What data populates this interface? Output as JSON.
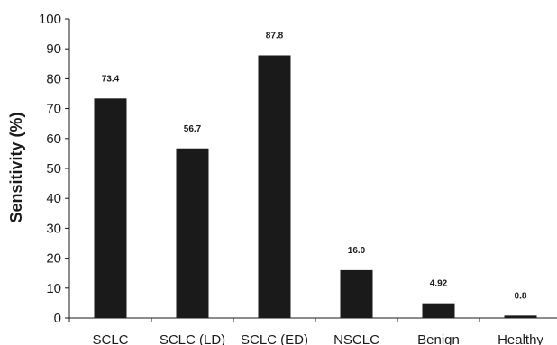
{
  "chart_data": {
    "type": "bar",
    "categories": [
      "SCLC",
      "SCLC (LD)",
      "SCLC (ED)",
      "NSCLC",
      "Benign",
      "Healthy"
    ],
    "values": [
      73.4,
      56.7,
      87.8,
      16.0,
      4.92,
      0.8
    ],
    "data_labels": [
      "73.4",
      "56.7",
      "87.8",
      "16.0",
      "4.92",
      "0.8"
    ],
    "title": "",
    "xlabel": "",
    "ylabel": "Sensitivity (%)",
    "ylim": [
      0,
      100
    ],
    "yticks": [
      0,
      10,
      20,
      30,
      40,
      50,
      60,
      70,
      80,
      90,
      100
    ],
    "grid": false,
    "legend": "none",
    "bar_color": "#1a1a1a"
  }
}
